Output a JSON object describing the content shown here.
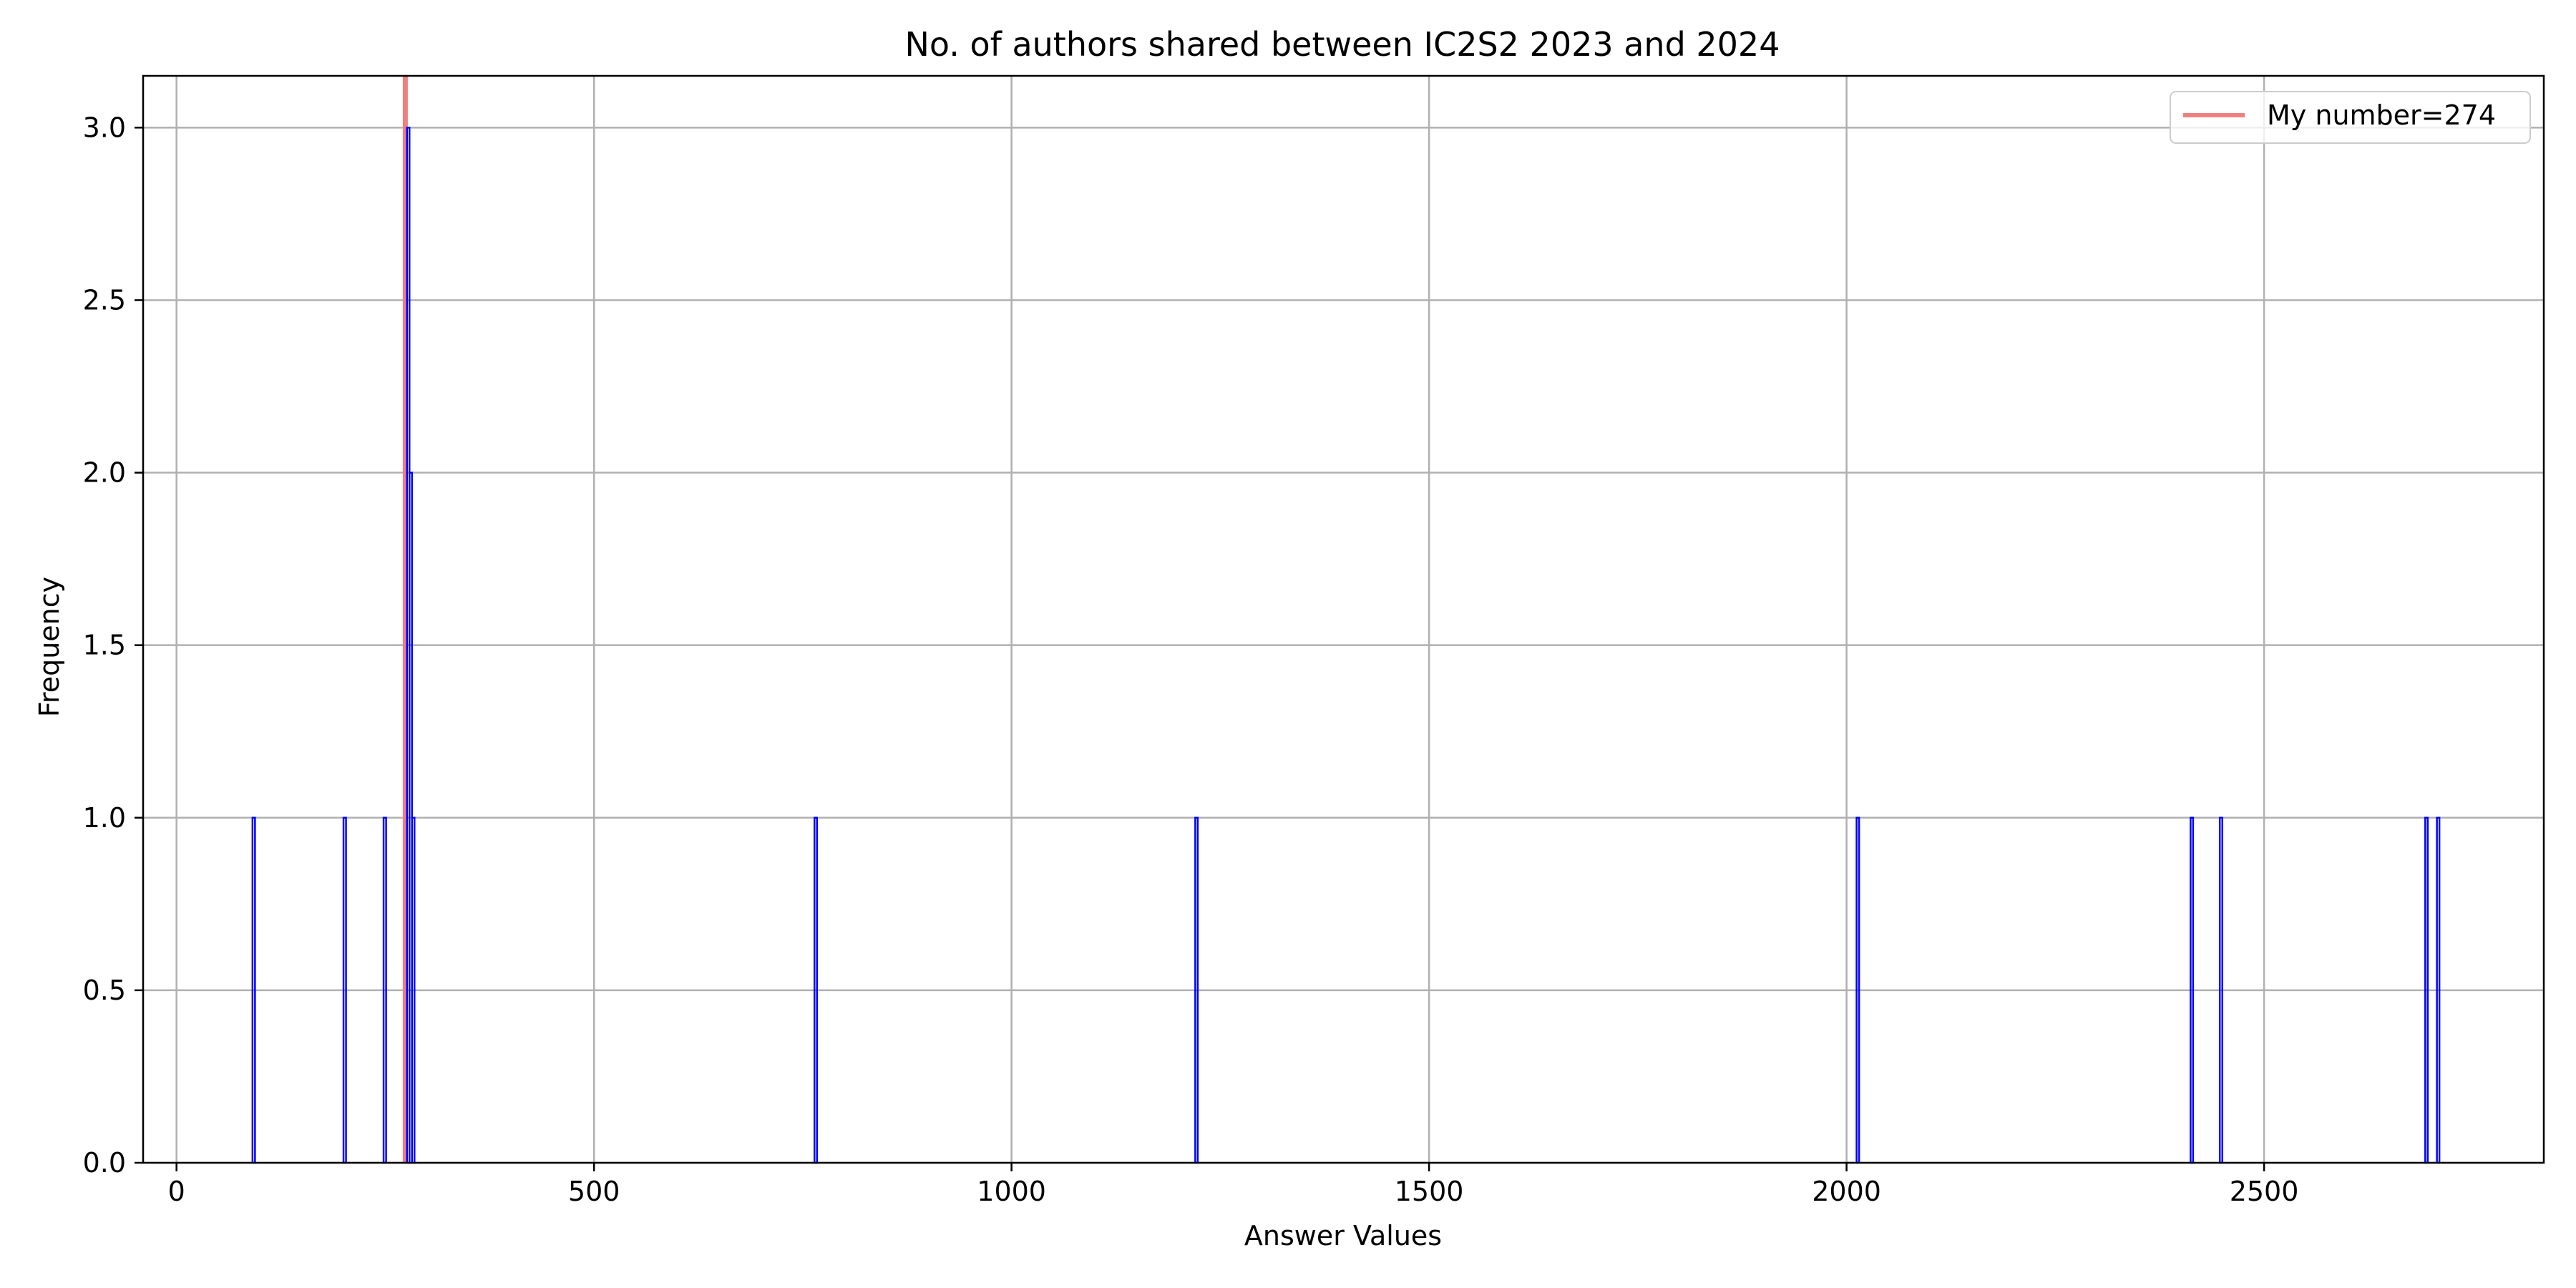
{
  "chart_data": {
    "type": "bar",
    "title": "No. of authors shared between IC2S2 2023 and 2024",
    "xlabel": "Answer Values",
    "ylabel": "Frequency",
    "xlim": [
      -40,
      2835
    ],
    "ylim": [
      0,
      3.15
    ],
    "grid": true,
    "x_ticks": [
      0,
      500,
      1000,
      1500,
      2000,
      2500
    ],
    "y_ticks": [
      "0.0",
      "0.5",
      "1.0",
      "1.5",
      "2.0",
      "2.5",
      "3.0"
    ],
    "bin_width": 3,
    "bar_color": "#0000ff",
    "bars": [
      {
        "x": 91,
        "count": 1
      },
      {
        "x": 200,
        "count": 1
      },
      {
        "x": 248,
        "count": 1
      },
      {
        "x": 276,
        "count": 3
      },
      {
        "x": 279,
        "count": 2
      },
      {
        "x": 282,
        "count": 1
      },
      {
        "x": 764,
        "count": 1
      },
      {
        "x": 1220,
        "count": 1
      },
      {
        "x": 2012,
        "count": 1
      },
      {
        "x": 2412,
        "count": 1
      },
      {
        "x": 2447,
        "count": 1
      },
      {
        "x": 2693,
        "count": 1
      },
      {
        "x": 2707,
        "count": 1
      }
    ],
    "reference_line": {
      "x": 274,
      "color": "#f08080"
    },
    "legend": {
      "position": "top-right",
      "entries": [
        {
          "label": "My number=274",
          "color": "#f08080"
        }
      ]
    }
  }
}
